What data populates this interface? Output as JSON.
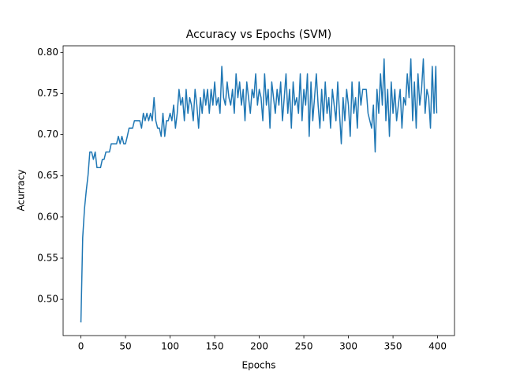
{
  "chart_data": {
    "type": "line",
    "title": "Accuracy vs Epochs (SVM)",
    "x_label": "Epochs",
    "y_label": "Acurracy",
    "color": "#1f77b4",
    "grid": false,
    "x": [
      0,
      2,
      4,
      6,
      8,
      10,
      12,
      14,
      16,
      18,
      20,
      22,
      24,
      26,
      28,
      30,
      32,
      34,
      36,
      38,
      40,
      42,
      44,
      46,
      48,
      50,
      52,
      54,
      56,
      58,
      60,
      62,
      64,
      66,
      68,
      70,
      72,
      74,
      76,
      78,
      80,
      82,
      84,
      86,
      88,
      90,
      92,
      94,
      96,
      98,
      100,
      102,
      104,
      106,
      108,
      110,
      112,
      114,
      116,
      118,
      120,
      122,
      124,
      126,
      128,
      130,
      132,
      134,
      136,
      138,
      140,
      142,
      144,
      146,
      148,
      150,
      152,
      154,
      156,
      158,
      160,
      162,
      164,
      166,
      168,
      170,
      172,
      174,
      176,
      178,
      180,
      182,
      184,
      186,
      188,
      190,
      192,
      194,
      196,
      198,
      200,
      202,
      204,
      206,
      208,
      210,
      212,
      214,
      216,
      218,
      220,
      222,
      224,
      226,
      228,
      230,
      232,
      234,
      236,
      238,
      240,
      242,
      244,
      246,
      248,
      250,
      252,
      254,
      256,
      258,
      260,
      262,
      264,
      266,
      268,
      270,
      272,
      274,
      276,
      278,
      280,
      282,
      284,
      286,
      288,
      290,
      292,
      294,
      296,
      298,
      300,
      302,
      304,
      306,
      308,
      310,
      312,
      314,
      316,
      318,
      320,
      322,
      324,
      326,
      328,
      330,
      332,
      334,
      336,
      338,
      340,
      342,
      344,
      346,
      348,
      350,
      352,
      354,
      356,
      358,
      360,
      362,
      364,
      366,
      368,
      370,
      372,
      374,
      376,
      378,
      380,
      382,
      384,
      386,
      388,
      390,
      392,
      394,
      396,
      398,
      399
    ],
    "values": [
      0.472,
      0.575,
      0.61,
      0.632,
      0.651,
      0.679,
      0.679,
      0.67,
      0.679,
      0.66,
      0.66,
      0.66,
      0.67,
      0.67,
      0.679,
      0.679,
      0.679,
      0.689,
      0.689,
      0.689,
      0.689,
      0.698,
      0.689,
      0.698,
      0.689,
      0.689,
      0.698,
      0.708,
      0.708,
      0.708,
      0.717,
      0.717,
      0.717,
      0.717,
      0.708,
      0.726,
      0.717,
      0.726,
      0.717,
      0.726,
      0.717,
      0.745,
      0.717,
      0.708,
      0.708,
      0.698,
      0.726,
      0.698,
      0.717,
      0.717,
      0.726,
      0.717,
      0.736,
      0.708,
      0.726,
      0.755,
      0.736,
      0.745,
      0.717,
      0.755,
      0.726,
      0.745,
      0.736,
      0.717,
      0.755,
      0.736,
      0.708,
      0.745,
      0.726,
      0.755,
      0.736,
      0.755,
      0.726,
      0.755,
      0.736,
      0.764,
      0.736,
      0.745,
      0.726,
      0.783,
      0.745,
      0.736,
      0.764,
      0.745,
      0.736,
      0.755,
      0.726,
      0.774,
      0.745,
      0.764,
      0.736,
      0.755,
      0.717,
      0.764,
      0.745,
      0.726,
      0.755,
      0.745,
      0.774,
      0.736,
      0.755,
      0.745,
      0.717,
      0.774,
      0.736,
      0.755,
      0.708,
      0.764,
      0.745,
      0.726,
      0.755,
      0.736,
      0.764,
      0.717,
      0.745,
      0.774,
      0.726,
      0.755,
      0.708,
      0.764,
      0.736,
      0.745,
      0.726,
      0.774,
      0.717,
      0.755,
      0.736,
      0.774,
      0.698,
      0.764,
      0.717,
      0.745,
      0.774,
      0.736,
      0.708,
      0.755,
      0.717,
      0.764,
      0.726,
      0.745,
      0.708,
      0.755,
      0.736,
      0.717,
      0.764,
      0.726,
      0.689,
      0.745,
      0.717,
      0.755,
      0.736,
      0.698,
      0.764,
      0.726,
      0.745,
      0.708,
      0.764,
      0.736,
      0.755,
      0.755,
      0.755,
      0.726,
      0.717,
      0.708,
      0.736,
      0.679,
      0.755,
      0.726,
      0.774,
      0.736,
      0.792,
      0.717,
      0.755,
      0.698,
      0.764,
      0.726,
      0.755,
      0.717,
      0.736,
      0.755,
      0.708,
      0.745,
      0.736,
      0.774,
      0.745,
      0.792,
      0.717,
      0.764,
      0.708,
      0.774,
      0.736,
      0.755,
      0.792,
      0.726,
      0.755,
      0.745,
      0.708,
      0.783,
      0.726,
      0.783,
      0.726
    ],
    "xlim": [
      -19.95,
      418.95
    ],
    "xticks": [
      0,
      50,
      100,
      150,
      200,
      250,
      300,
      350,
      400
    ],
    "ylim": [
      0.456,
      0.808
    ],
    "yticks": [
      {
        "value": 0.5,
        "label": "0.50"
      },
      0.55,
      {
        "value": 0.6,
        "label": "0.60"
      },
      0.65,
      {
        "value": 0.7,
        "label": "0.70"
      },
      0.75,
      {
        "value": 0.8,
        "label": "0.80"
      }
    ]
  }
}
